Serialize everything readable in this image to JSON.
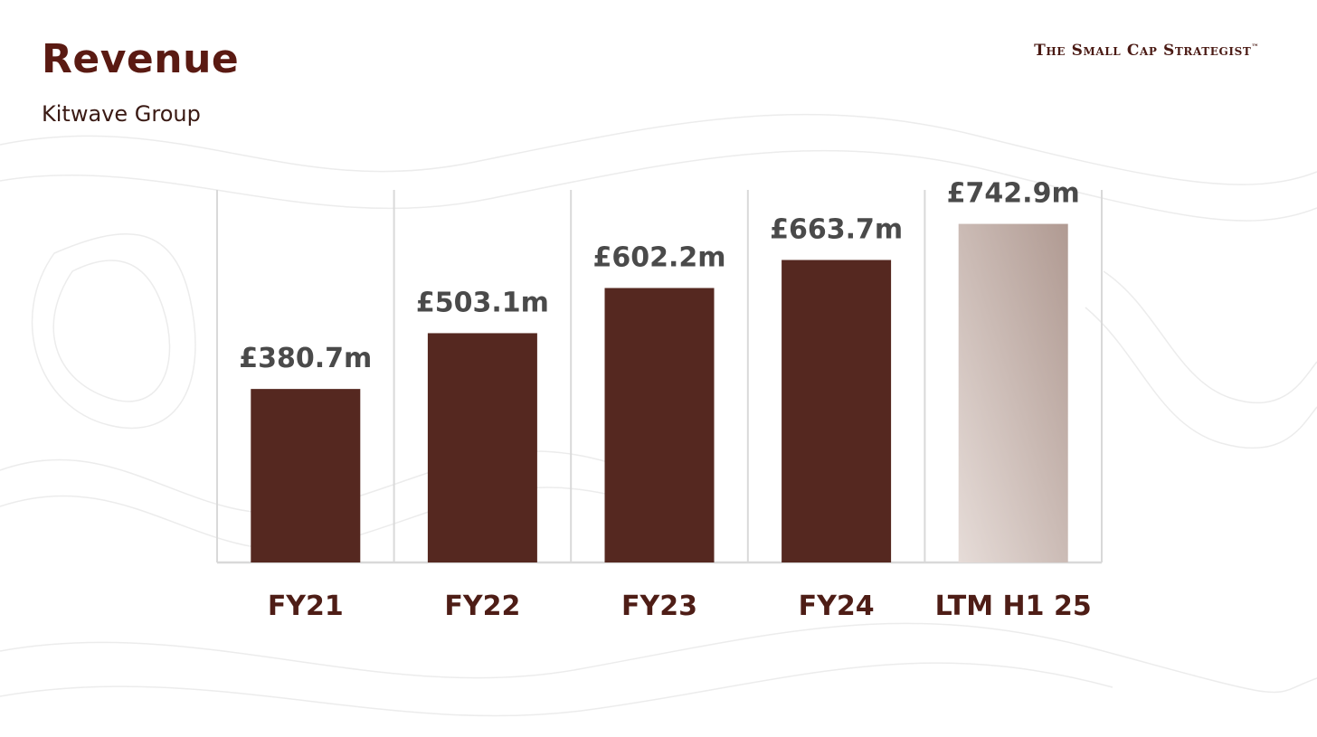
{
  "header": {
    "title": "Revenue",
    "subtitle": "Kitwave Group",
    "brand": "The Small Cap Strategist",
    "brand_mark": "™"
  },
  "colors": {
    "bar": "#552820",
    "bar_highlight_start": "#e6dcd8",
    "bar_highlight_end": "#b09a92",
    "gridline": "#d9d9d9"
  },
  "chart_data": {
    "type": "bar",
    "categories": [
      "FY21",
      "FY22",
      "FY23",
      "FY24",
      "LTM H1 25"
    ],
    "values": [
      380.7,
      503.1,
      602.2,
      663.7,
      742.9
    ],
    "value_labels": [
      "£380.7m",
      "£503.1m",
      "£602.2m",
      "£663.7m",
      "£742.9m"
    ],
    "title": "Revenue",
    "subtitle": "Kitwave Group",
    "xlabel": "",
    "ylabel": "",
    "ylim": [
      0,
      800
    ],
    "grid": true,
    "legend": "none"
  }
}
